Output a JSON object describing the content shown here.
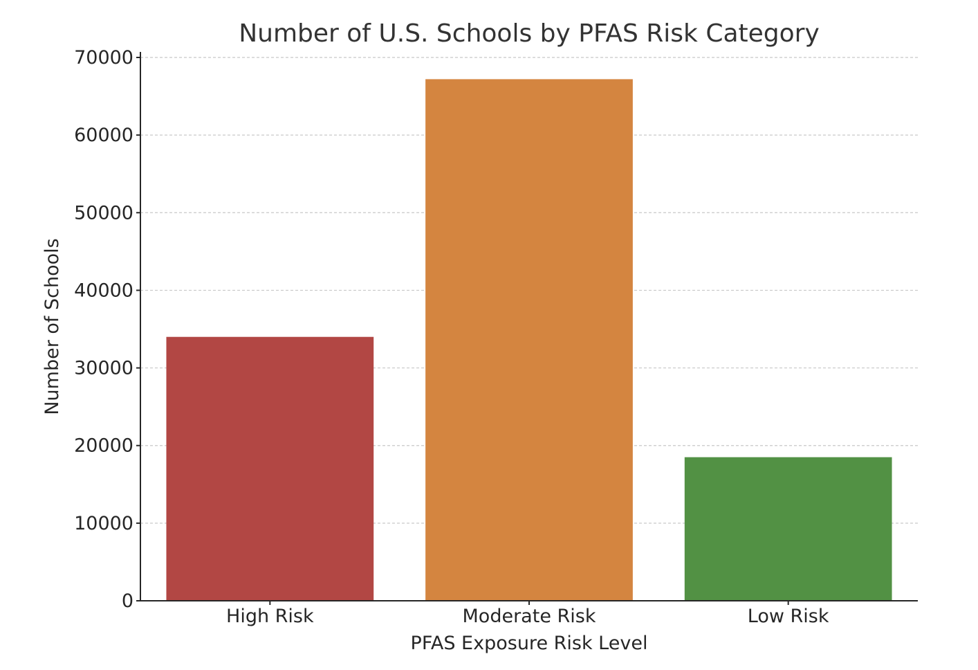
{
  "chart_data": {
    "type": "bar",
    "title": "Number of U.S. Schools by PFAS Risk Category",
    "xlabel": "PFAS Exposure Risk Level",
    "ylabel": "Number of Schools",
    "categories": [
      "High Risk",
      "Moderate Risk",
      "Low Risk"
    ],
    "values": [
      34000,
      67200,
      18500
    ],
    "colors": [
      "#b24744",
      "#d48540",
      "#529144"
    ],
    "ylim": [
      0,
      70000
    ],
    "yticks": [
      0,
      10000,
      20000,
      30000,
      40000,
      50000,
      60000,
      70000
    ],
    "grid": "y-dashed",
    "legend": "none"
  }
}
